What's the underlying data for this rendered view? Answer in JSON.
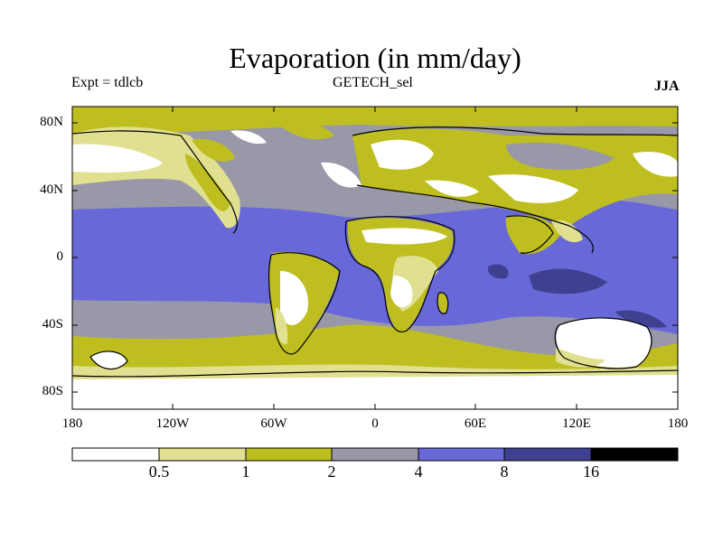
{
  "title": "Evaporation (in mm/day)",
  "experiment_label": "Expt = tdlcb",
  "dataset_label": "GETECH_sel",
  "season_label": "JJA",
  "map": {
    "lat_ticks": [
      "80N",
      "40N",
      "0",
      "40S",
      "80S"
    ],
    "lon_ticks": [
      "180",
      "120W",
      "60W",
      "0",
      "60E",
      "120E",
      "180"
    ],
    "lon_range": [
      -180,
      180
    ],
    "lat_range": [
      -90,
      90
    ]
  },
  "colorbar": {
    "boundaries": [
      "0.5",
      "1",
      "2",
      "4",
      "8",
      "16"
    ],
    "colors": [
      "#ffffff",
      "#e0e090",
      "#bebe20",
      "#9898a8",
      "#6868d8",
      "#404090",
      "#000000"
    ]
  }
}
